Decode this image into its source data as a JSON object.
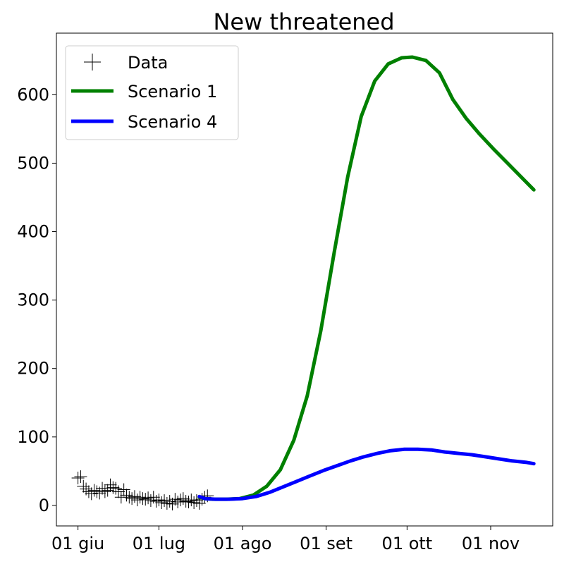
{
  "chart_data": {
    "type": "line",
    "title": "New threatened",
    "xlabel": "",
    "ylabel": "",
    "x_ticks": [
      "01 giu",
      "01 lug",
      "01 ago",
      "01 set",
      "01 ott",
      "01 nov"
    ],
    "y_ticks": [
      0,
      100,
      200,
      300,
      400,
      500,
      600
    ],
    "xlim": [
      "2020-05-24",
      "2020-11-24"
    ],
    "ylim": [
      -30,
      690
    ],
    "grid": false,
    "legend_position": "top-left",
    "legend": [
      "Data",
      "Scenario 1",
      "Scenario 4"
    ],
    "series": [
      {
        "name": "Data",
        "marker": "+",
        "color": "#000000",
        "points": [
          [
            "2020-06-01",
            40
          ],
          [
            "2020-06-02",
            42
          ],
          [
            "2020-06-03",
            28
          ],
          [
            "2020-06-04",
            24
          ],
          [
            "2020-06-05",
            20
          ],
          [
            "2020-06-06",
            17
          ],
          [
            "2020-06-07",
            22
          ],
          [
            "2020-06-08",
            20
          ],
          [
            "2020-06-09",
            18
          ],
          [
            "2020-06-10",
            25
          ],
          [
            "2020-06-11",
            20
          ],
          [
            "2020-06-12",
            22
          ],
          [
            "2020-06-13",
            30
          ],
          [
            "2020-06-14",
            26
          ],
          [
            "2020-06-15",
            25
          ],
          [
            "2020-06-16",
            20
          ],
          [
            "2020-06-17",
            12
          ],
          [
            "2020-06-18",
            23
          ],
          [
            "2020-06-19",
            15
          ],
          [
            "2020-06-20",
            12
          ],
          [
            "2020-06-21",
            10
          ],
          [
            "2020-06-22",
            13
          ],
          [
            "2020-06-23",
            8
          ],
          [
            "2020-06-24",
            12
          ],
          [
            "2020-06-25",
            10
          ],
          [
            "2020-06-26",
            9
          ],
          [
            "2020-06-27",
            11
          ],
          [
            "2020-06-28",
            7
          ],
          [
            "2020-06-29",
            12
          ],
          [
            "2020-06-30",
            6
          ],
          [
            "2020-07-01",
            8
          ],
          [
            "2020-07-02",
            4
          ],
          [
            "2020-07-03",
            7
          ],
          [
            "2020-07-04",
            3
          ],
          [
            "2020-07-05",
            6
          ],
          [
            "2020-07-06",
            2
          ],
          [
            "2020-07-07",
            9
          ],
          [
            "2020-07-08",
            5
          ],
          [
            "2020-07-09",
            8
          ],
          [
            "2020-07-10",
            10
          ],
          [
            "2020-07-11",
            6
          ],
          [
            "2020-07-12",
            5
          ],
          [
            "2020-07-13",
            8
          ],
          [
            "2020-07-14",
            4
          ],
          [
            "2020-07-15",
            7
          ],
          [
            "2020-07-16",
            3
          ],
          [
            "2020-07-17",
            9
          ],
          [
            "2020-07-18",
            12
          ],
          [
            "2020-07-19",
            14
          ]
        ]
      },
      {
        "name": "Scenario 1",
        "color": "#008000",
        "points": [
          [
            "2020-07-16",
            12
          ],
          [
            "2020-07-18",
            10
          ],
          [
            "2020-07-21",
            9
          ],
          [
            "2020-07-26",
            9
          ],
          [
            "2020-07-31",
            10
          ],
          [
            "2020-08-05",
            15
          ],
          [
            "2020-08-10",
            28
          ],
          [
            "2020-08-15",
            52
          ],
          [
            "2020-08-20",
            95
          ],
          [
            "2020-08-25",
            160
          ],
          [
            "2020-08-30",
            255
          ],
          [
            "2020-09-04",
            370
          ],
          [
            "2020-09-09",
            480
          ],
          [
            "2020-09-14",
            568
          ],
          [
            "2020-09-19",
            620
          ],
          [
            "2020-09-24",
            645
          ],
          [
            "2020-09-29",
            654
          ],
          [
            "2020-10-03",
            655
          ],
          [
            "2020-10-08",
            650
          ],
          [
            "2020-10-13",
            632
          ],
          [
            "2020-10-18",
            593
          ],
          [
            "2020-10-23",
            565
          ],
          [
            "2020-10-28",
            542
          ],
          [
            "2020-11-02",
            521
          ],
          [
            "2020-11-07",
            501
          ],
          [
            "2020-11-12",
            481
          ],
          [
            "2020-11-17",
            461
          ]
        ]
      },
      {
        "name": "Scenario 4",
        "color": "#0000ff",
        "points": [
          [
            "2020-07-16",
            13
          ],
          [
            "2020-07-18",
            10
          ],
          [
            "2020-07-22",
            9
          ],
          [
            "2020-07-27",
            9
          ],
          [
            "2020-08-01",
            10
          ],
          [
            "2020-08-06",
            13
          ],
          [
            "2020-08-11",
            19
          ],
          [
            "2020-08-16",
            27
          ],
          [
            "2020-08-21",
            35
          ],
          [
            "2020-08-26",
            43
          ],
          [
            "2020-08-31",
            51
          ],
          [
            "2020-09-05",
            58
          ],
          [
            "2020-09-10",
            65
          ],
          [
            "2020-09-15",
            71
          ],
          [
            "2020-09-20",
            76
          ],
          [
            "2020-09-25",
            80
          ],
          [
            "2020-09-30",
            82
          ],
          [
            "2020-10-05",
            82
          ],
          [
            "2020-10-10",
            81
          ],
          [
            "2020-10-15",
            78
          ],
          [
            "2020-10-20",
            76
          ],
          [
            "2020-10-25",
            74
          ],
          [
            "2020-10-30",
            71
          ],
          [
            "2020-11-04",
            68
          ],
          [
            "2020-11-09",
            65
          ],
          [
            "2020-11-14",
            63
          ],
          [
            "2020-11-17",
            61
          ]
        ]
      }
    ]
  }
}
